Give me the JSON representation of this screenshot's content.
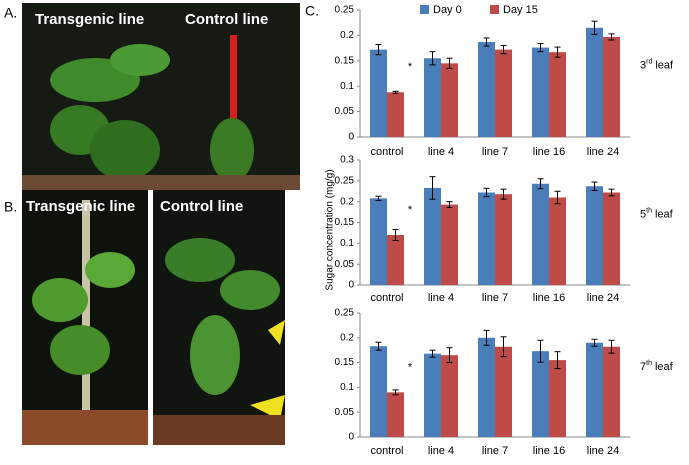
{
  "photo_panels": [
    {
      "label": "A.",
      "captions": [
        "Transgenic line",
        "Control line"
      ]
    },
    {
      "label": "B.",
      "captions": [
        "Transgenic line",
        "Control line"
      ]
    }
  ],
  "chart_panel": {
    "label": "C.",
    "y_label": "Sugar concentration (mg/g)"
  },
  "chart_data": [
    {
      "type": "bar",
      "legend": true,
      "categories": [
        "control",
        "line 4",
        "line 7",
        "line 16",
        "line 24"
      ],
      "ylim": [
        0,
        0.25
      ],
      "yticks": [
        0,
        0.05,
        0.1,
        0.15,
        0.2,
        0.25
      ],
      "annotation": "*",
      "leaf_number": "3",
      "leaf_suffix": "rd",
      "leaf_text": "leaf",
      "series": [
        {
          "name": "Day 0",
          "color": "#4a7ebb",
          "values": [
            0.172,
            0.155,
            0.187,
            0.176,
            0.215
          ],
          "errors": [
            0.01,
            0.013,
            0.008,
            0.008,
            0.013
          ]
        },
        {
          "name": "Day 15",
          "color": "#be4b48",
          "values": [
            0.088,
            0.145,
            0.172,
            0.167,
            0.197
          ],
          "errors": [
            0.002,
            0.01,
            0.008,
            0.01,
            0.006
          ]
        }
      ]
    },
    {
      "type": "bar",
      "categories": [
        "control",
        "line 4",
        "line 7",
        "line 16",
        "line 24"
      ],
      "ylim": [
        0,
        0.3
      ],
      "yticks": [
        0,
        0.05,
        0.1,
        0.15,
        0.2,
        0.25,
        0.3
      ],
      "annotation": "*",
      "leaf_number": "5",
      "leaf_suffix": "th",
      "leaf_text": "leaf",
      "series": [
        {
          "color": "#4a7ebb",
          "values": [
            0.208,
            0.233,
            0.222,
            0.243,
            0.237
          ],
          "errors": [
            0.005,
            0.027,
            0.01,
            0.012,
            0.01
          ]
        },
        {
          "color": "#be4b48",
          "values": [
            0.12,
            0.193,
            0.218,
            0.21,
            0.222
          ],
          "errors": [
            0.013,
            0.007,
            0.012,
            0.015,
            0.008
          ]
        }
      ]
    },
    {
      "type": "bar",
      "categories": [
        "control",
        "line 4",
        "line 7",
        "line 16",
        "line 24"
      ],
      "ylim": [
        0,
        0.25
      ],
      "yticks": [
        0,
        0.05,
        0.1,
        0.15,
        0.2,
        0.25
      ],
      "annotation": "*",
      "leaf_number": "7",
      "leaf_suffix": "th",
      "leaf_text": "leaf",
      "series": [
        {
          "color": "#4a7ebb",
          "values": [
            0.183,
            0.168,
            0.2,
            0.173,
            0.19
          ],
          "errors": [
            0.008,
            0.007,
            0.015,
            0.022,
            0.007
          ]
        },
        {
          "color": "#be4b48",
          "values": [
            0.09,
            0.165,
            0.182,
            0.155,
            0.182
          ],
          "errors": [
            0.005,
            0.015,
            0.02,
            0.017,
            0.013
          ]
        }
      ]
    }
  ]
}
